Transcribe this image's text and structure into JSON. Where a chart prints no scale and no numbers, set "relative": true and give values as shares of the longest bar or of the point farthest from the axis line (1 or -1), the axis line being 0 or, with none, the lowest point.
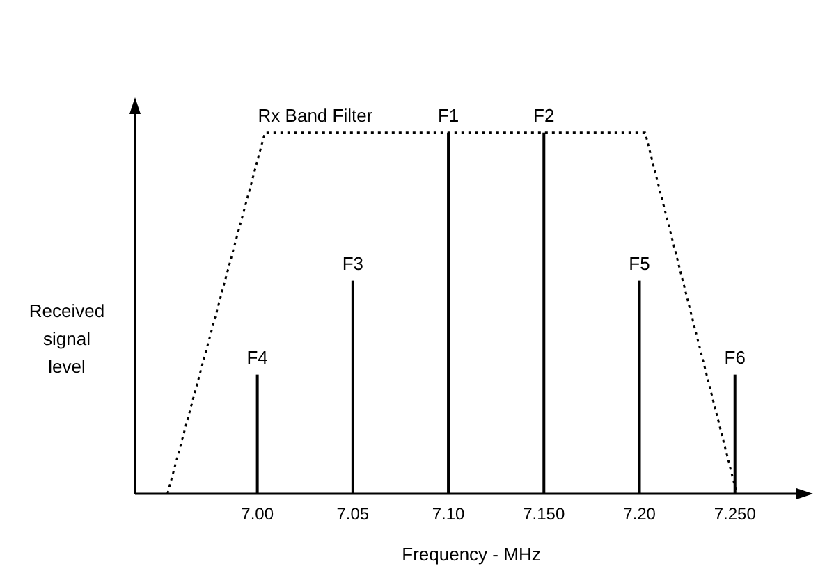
{
  "chart_data": {
    "type": "bar",
    "relative": true,
    "xlabel": "Frequency - MHz",
    "ylabel": "Received signal level",
    "x": [
      7.0,
      7.05,
      7.1,
      7.15,
      7.2,
      7.25
    ],
    "xlim": [
      6.936,
      7.288
    ],
    "xticks": [
      {
        "value": 7.0,
        "label": "7.00"
      },
      {
        "value": 7.05,
        "label": "7.05"
      },
      {
        "value": 7.1,
        "label": "7.10"
      },
      {
        "value": 7.15,
        "label": "7.150"
      },
      {
        "value": 7.2,
        "label": "7.20"
      },
      {
        "value": 7.25,
        "label": "7.250"
      }
    ],
    "series": [
      {
        "color": "#000000",
        "values": [
          0.33,
          0.59,
          1,
          1,
          0.59,
          0.33
        ]
      },
      {
        "type": "line",
        "name": "Rx Band Filter",
        "color": "#000000",
        "line_style": "dotted",
        "x": [
          6.953,
          7.004,
          7.203,
          7.251
        ],
        "values": [
          0,
          1,
          1,
          0
        ]
      }
    ],
    "annotations": [
      {
        "text": "F4",
        "x": 7.0,
        "y": 0.33
      },
      {
        "text": "F3",
        "x": 7.05,
        "y": 0.59
      },
      {
        "text": "F1",
        "x": 7.1,
        "y": 1
      },
      {
        "text": "F2",
        "x": 7.15,
        "y": 1
      },
      {
        "text": "F5",
        "x": 7.2,
        "y": 0.59
      },
      {
        "text": "F6",
        "x": 7.25,
        "y": 0.33
      }
    ]
  }
}
